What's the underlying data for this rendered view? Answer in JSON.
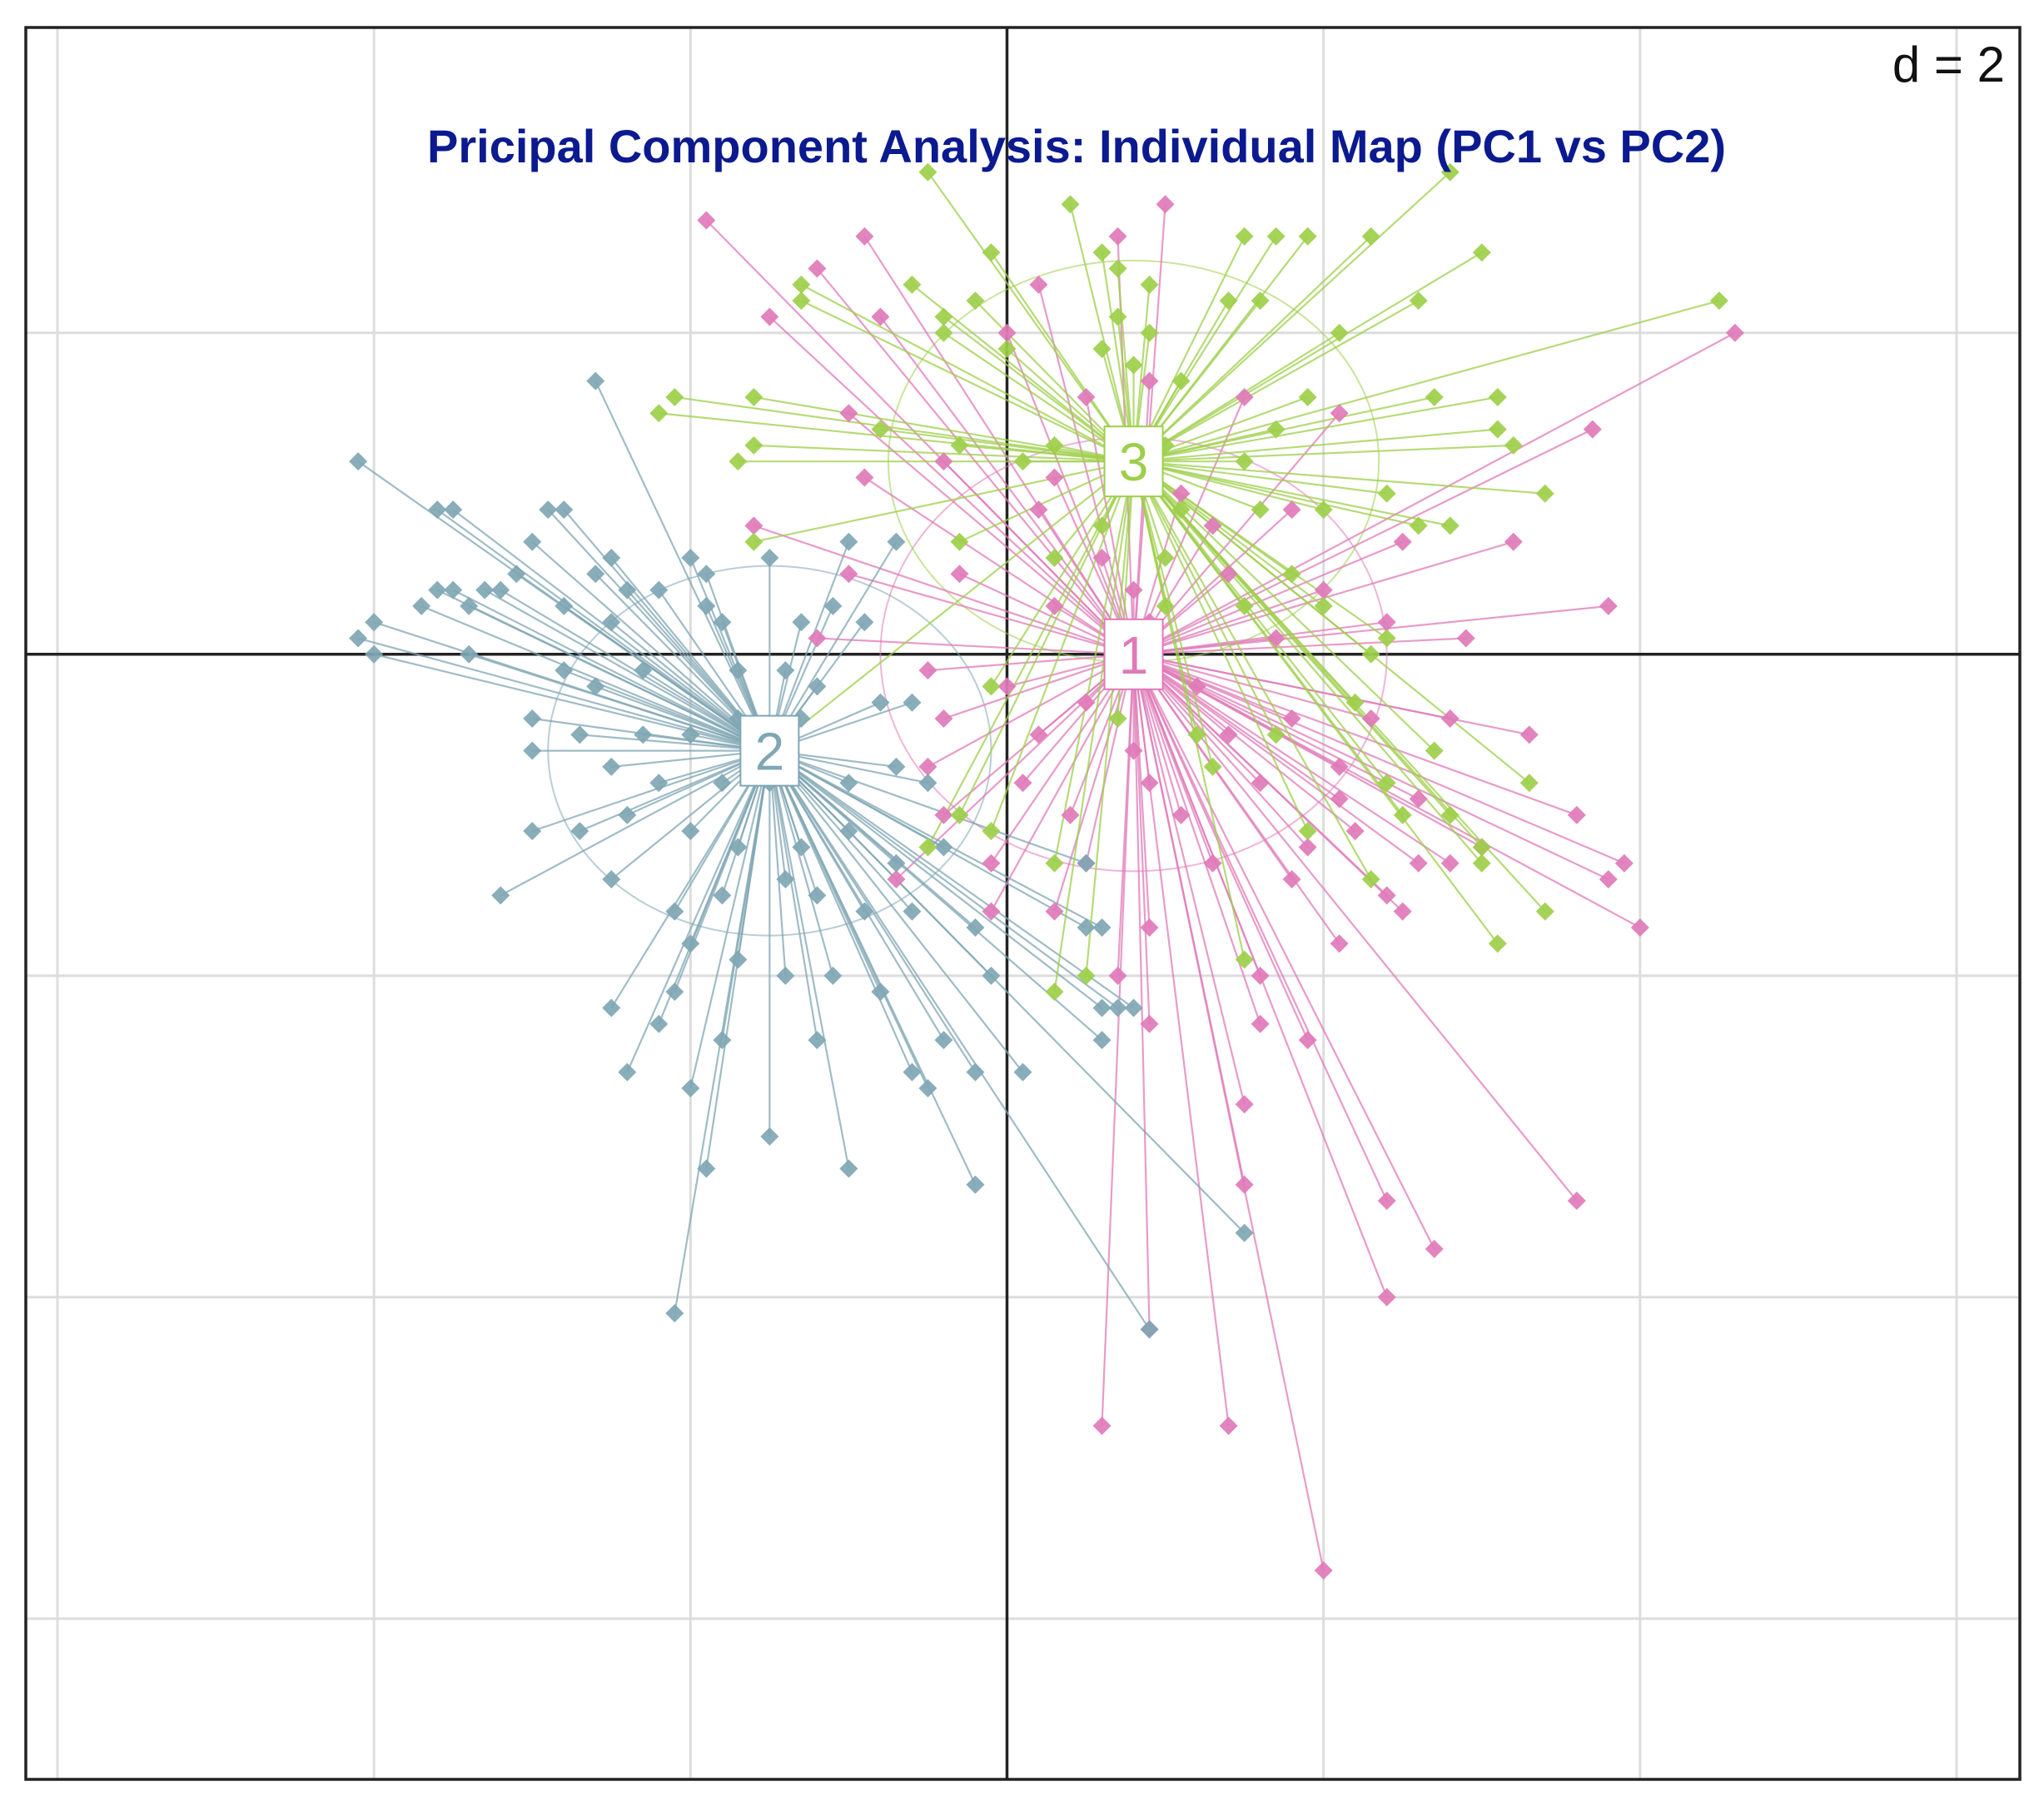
{
  "chart_data": {
    "type": "scatter",
    "title": "Pricipal Component Analysis: Individual Map (PC1 vs PC2)",
    "xlabel": "",
    "ylabel": "",
    "scale_label": "d = 2",
    "xlim": [
      -6.2,
      6.4
    ],
    "ylim": [
      -7.0,
      3.9
    ],
    "grid_step": 2,
    "grid": true,
    "colors": {
      "title": "#0b1a8f",
      "cluster_1": "#e07ab8",
      "cluster_2": "#7fa6b3",
      "cluster_3": "#9dcf4a"
    },
    "series": [
      {
        "name": "1",
        "centroid": [
          0.8,
          0.0
        ],
        "ellipse_radius": [
          1.6,
          1.35
        ],
        "points": [
          [
            1.0,
            2.8
          ],
          [
            0.7,
            2.6
          ],
          [
            0.2,
            2.3
          ],
          [
            -0.9,
            2.6
          ],
          [
            -1.2,
            2.4
          ],
          [
            -1.9,
            2.7
          ],
          [
            -0.8,
            2.1
          ],
          [
            -1.5,
            2.1
          ],
          [
            0.0,
            2.0
          ],
          [
            0.5,
            1.6
          ],
          [
            0.9,
            1.7
          ],
          [
            1.5,
            1.6
          ],
          [
            2.1,
            1.5
          ],
          [
            3.7,
            1.4
          ],
          [
            4.6,
            2.0
          ],
          [
            -1.0,
            1.5
          ],
          [
            -0.9,
            1.1
          ],
          [
            -0.4,
            1.2
          ],
          [
            0.3,
            1.1
          ],
          [
            1.1,
            1.0
          ],
          [
            1.8,
            0.9
          ],
          [
            2.5,
            0.7
          ],
          [
            3.2,
            0.7
          ],
          [
            1.3,
            0.8
          ],
          [
            0.6,
            0.6
          ],
          [
            0.2,
            0.9
          ],
          [
            0.8,
            0.4
          ],
          [
            1.4,
            0.5
          ],
          [
            2.0,
            0.4
          ],
          [
            2.4,
            0.2
          ],
          [
            3.8,
            0.3
          ],
          [
            -1.6,
            0.8
          ],
          [
            -1.0,
            0.5
          ],
          [
            -0.3,
            0.5
          ],
          [
            0.3,
            0.3
          ],
          [
            0.9,
            0.2
          ],
          [
            1.7,
            0.1
          ],
          [
            2.9,
            0.1
          ],
          [
            -1.2,
            0.1
          ],
          [
            -0.5,
            -0.1
          ],
          [
            0.0,
            -0.2
          ],
          [
            0.5,
            -0.3
          ],
          [
            1.2,
            -0.2
          ],
          [
            1.8,
            -0.4
          ],
          [
            2.3,
            -0.4
          ],
          [
            2.8,
            -0.4
          ],
          [
            -0.4,
            -0.4
          ],
          [
            0.2,
            -0.5
          ],
          [
            0.8,
            -0.6
          ],
          [
            1.4,
            -0.5
          ],
          [
            2.1,
            -0.7
          ],
          [
            3.3,
            -0.5
          ],
          [
            -0.5,
            -0.7
          ],
          [
            0.1,
            -0.8
          ],
          [
            0.9,
            -0.8
          ],
          [
            1.6,
            -0.8
          ],
          [
            2.1,
            -0.9
          ],
          [
            2.6,
            -0.9
          ],
          [
            3.6,
            -1.0
          ],
          [
            -0.4,
            -1.0
          ],
          [
            0.4,
            -1.0
          ],
          [
            1.1,
            -1.0
          ],
          [
            1.9,
            -1.2
          ],
          [
            2.2,
            -1.1
          ],
          [
            2.6,
            -1.3
          ],
          [
            3.0,
            -1.2
          ],
          [
            3.9,
            -1.3
          ],
          [
            3.8,
            -1.4
          ],
          [
            -0.1,
            -1.3
          ],
          [
            0.5,
            -1.3
          ],
          [
            1.3,
            -1.3
          ],
          [
            1.8,
            -1.4
          ],
          [
            2.4,
            -1.5
          ],
          [
            2.5,
            -1.6
          ],
          [
            2.8,
            -1.3
          ],
          [
            0.3,
            -1.6
          ],
          [
            0.9,
            -1.7
          ],
          [
            2.1,
            -1.8
          ],
          [
            1.6,
            -2.0
          ],
          [
            0.9,
            -2.3
          ],
          [
            -0.7,
            -1.4
          ],
          [
            -0.1,
            -1.6
          ],
          [
            0.7,
            -2.0
          ],
          [
            4.0,
            -1.7
          ],
          [
            1.6,
            -2.3
          ],
          [
            1.9,
            -2.4
          ],
          [
            1.5,
            -2.8
          ],
          [
            1.5,
            -3.3
          ],
          [
            3.6,
            -3.4
          ],
          [
            2.4,
            -3.4
          ],
          [
            2.7,
            -3.7
          ],
          [
            2.4,
            -4.0
          ],
          [
            0.9,
            -4.2
          ],
          [
            0.6,
            -4.8
          ],
          [
            1.4,
            -4.8
          ],
          [
            2.0,
            -5.7
          ]
        ]
      },
      {
        "name": "2",
        "centroid": [
          -1.5,
          -0.6
        ],
        "ellipse_radius": [
          1.4,
          1.15
        ],
        "points": [
          [
            -2.6,
            1.7
          ],
          [
            -4.1,
            1.2
          ],
          [
            -3.6,
            0.9
          ],
          [
            -3.5,
            0.9
          ],
          [
            -2.9,
            0.9
          ],
          [
            -2.8,
            0.9
          ],
          [
            -3.0,
            0.7
          ],
          [
            -2.5,
            0.6
          ],
          [
            -2.0,
            0.6
          ],
          [
            -3.1,
            0.5
          ],
          [
            -3.2,
            0.4
          ],
          [
            -3.3,
            0.4
          ],
          [
            -2.6,
            0.5
          ],
          [
            -2.4,
            0.4
          ],
          [
            -2.2,
            0.4
          ],
          [
            -1.9,
            0.5
          ],
          [
            -1.5,
            0.6
          ],
          [
            -1.0,
            0.7
          ],
          [
            -0.7,
            0.7
          ],
          [
            -4.0,
            0.2
          ],
          [
            -3.4,
            0.3
          ],
          [
            -3.5,
            0.4
          ],
          [
            -3.6,
            0.4
          ],
          [
            -2.8,
            0.3
          ],
          [
            -2.5,
            0.2
          ],
          [
            -1.9,
            0.3
          ],
          [
            -1.8,
            0.2
          ],
          [
            -1.3,
            0.2
          ],
          [
            -1.1,
            0.3
          ],
          [
            -0.9,
            0.2
          ],
          [
            -4.1,
            0.1
          ],
          [
            -4.0,
            0.0
          ],
          [
            -3.7,
            0.3
          ],
          [
            -3.4,
            0.0
          ],
          [
            -2.8,
            -0.1
          ],
          [
            -2.6,
            -0.2
          ],
          [
            -2.3,
            -0.1
          ],
          [
            -1.7,
            -0.1
          ],
          [
            -1.4,
            -0.1
          ],
          [
            -1.2,
            -0.2
          ],
          [
            -3.0,
            -0.4
          ],
          [
            -2.7,
            -0.5
          ],
          [
            -2.3,
            -0.5
          ],
          [
            -2.0,
            -0.5
          ],
          [
            -1.7,
            -0.4
          ],
          [
            -1.3,
            -0.4
          ],
          [
            -0.8,
            -0.3
          ],
          [
            -0.6,
            -0.3
          ],
          [
            -3.0,
            -0.6
          ],
          [
            -2.5,
            -0.7
          ],
          [
            -2.2,
            -0.8
          ],
          [
            -1.8,
            -0.8
          ],
          [
            -1.5,
            -0.8
          ],
          [
            -1.0,
            -0.8
          ],
          [
            -0.7,
            -0.7
          ],
          [
            -0.5,
            -0.8
          ],
          [
            -3.0,
            -1.1
          ],
          [
            -2.7,
            -1.1
          ],
          [
            -2.4,
            -1.0
          ],
          [
            -2.0,
            -1.1
          ],
          [
            -1.7,
            -1.2
          ],
          [
            -1.3,
            -1.2
          ],
          [
            -1.0,
            -1.1
          ],
          [
            -0.7,
            -1.3
          ],
          [
            -0.4,
            -1.2
          ],
          [
            0.5,
            -1.3
          ],
          [
            -3.2,
            -1.5
          ],
          [
            -2.5,
            -1.4
          ],
          [
            -2.1,
            -1.6
          ],
          [
            -1.8,
            -1.5
          ],
          [
            -1.4,
            -1.4
          ],
          [
            -1.2,
            -1.5
          ],
          [
            -0.9,
            -1.6
          ],
          [
            -0.6,
            -1.6
          ],
          [
            -0.2,
            -1.7
          ],
          [
            0.5,
            -1.7
          ],
          [
            0.6,
            -1.7
          ],
          [
            -2.0,
            -1.8
          ],
          [
            -1.7,
            -1.9
          ],
          [
            -1.4,
            -2.0
          ],
          [
            -1.1,
            -2.0
          ],
          [
            -0.8,
            -2.1
          ],
          [
            -0.1,
            -2.0
          ],
          [
            0.6,
            -2.2
          ],
          [
            0.7,
            -2.2
          ],
          [
            0.8,
            -2.2
          ],
          [
            -2.5,
            -2.2
          ],
          [
            -2.1,
            -2.1
          ],
          [
            -1.8,
            -2.4
          ],
          [
            -1.2,
            -2.4
          ],
          [
            -0.4,
            -2.4
          ],
          [
            0.1,
            -2.6
          ],
          [
            -2.0,
            -2.7
          ],
          [
            -2.2,
            -2.3
          ],
          [
            -0.6,
            -2.6
          ],
          [
            -0.2,
            -2.6
          ],
          [
            -2.4,
            -2.6
          ],
          [
            -1.5,
            -3.0
          ],
          [
            -1.9,
            -3.2
          ],
          [
            -1.0,
            -3.2
          ],
          [
            -0.2,
            -3.3
          ],
          [
            1.5,
            -3.6
          ],
          [
            -2.1,
            -4.1
          ],
          [
            0.9,
            -4.2
          ],
          [
            0.6,
            -2.4
          ],
          [
            -0.5,
            -2.7
          ]
        ]
      },
      {
        "name": "3",
        "centroid": [
          0.8,
          1.2
        ],
        "ellipse_radius": [
          1.55,
          1.25
        ],
        "points": [
          [
            -0.5,
            3.0
          ],
          [
            2.8,
            3.0
          ],
          [
            0.4,
            2.8
          ],
          [
            1.5,
            2.6
          ],
          [
            1.7,
            2.6
          ],
          [
            1.9,
            2.6
          ],
          [
            2.3,
            2.6
          ],
          [
            3.0,
            2.5
          ],
          [
            -0.1,
            2.5
          ],
          [
            0.6,
            2.5
          ],
          [
            0.7,
            2.4
          ],
          [
            -1.3,
            2.3
          ],
          [
            -0.6,
            2.3
          ],
          [
            -0.2,
            2.2
          ],
          [
            0.9,
            2.3
          ],
          [
            1.4,
            2.2
          ],
          [
            1.6,
            2.2
          ],
          [
            2.6,
            2.2
          ],
          [
            -1.3,
            2.2
          ],
          [
            -0.4,
            2.1
          ],
          [
            0.7,
            2.1
          ],
          [
            0.9,
            2.0
          ],
          [
            2.1,
            2.0
          ],
          [
            4.5,
            2.2
          ],
          [
            -0.4,
            2.0
          ],
          [
            0.0,
            1.9
          ],
          [
            0.6,
            1.9
          ],
          [
            0.8,
            1.8
          ],
          [
            1.1,
            1.7
          ],
          [
            1.9,
            1.6
          ],
          [
            2.7,
            1.6
          ],
          [
            3.1,
            1.6
          ],
          [
            -2.1,
            1.6
          ],
          [
            -1.6,
            1.6
          ],
          [
            -2.2,
            1.5
          ],
          [
            -1.6,
            1.3
          ],
          [
            -0.8,
            1.4
          ],
          [
            -0.3,
            1.3
          ],
          [
            0.3,
            1.3
          ],
          [
            1.0,
            1.3
          ],
          [
            1.7,
            1.4
          ],
          [
            3.1,
            1.4
          ],
          [
            3.2,
            1.3
          ],
          [
            -1.7,
            1.2
          ],
          [
            0.1,
            1.2
          ],
          [
            0.8,
            1.1
          ],
          [
            1.5,
            1.2
          ],
          [
            2.4,
            1.0
          ],
          [
            3.4,
            1.0
          ],
          [
            1.1,
            0.9
          ],
          [
            1.6,
            0.9
          ],
          [
            2.0,
            0.9
          ],
          [
            2.6,
            0.8
          ],
          [
            2.8,
            0.8
          ],
          [
            0.6,
            0.8
          ],
          [
            -1.6,
            0.7
          ],
          [
            -0.3,
            0.7
          ],
          [
            0.3,
            0.6
          ],
          [
            1.0,
            0.6
          ],
          [
            1.8,
            0.5
          ],
          [
            1.5,
            0.3
          ],
          [
            1.0,
            0.3
          ],
          [
            2.0,
            0.3
          ],
          [
            2.4,
            0.1
          ],
          [
            2.3,
            0.0
          ],
          [
            -0.1,
            -0.2
          ],
          [
            0.7,
            -0.4
          ],
          [
            1.2,
            -0.5
          ],
          [
            2.2,
            -0.3
          ],
          [
            1.7,
            -0.5
          ],
          [
            1.3,
            -0.7
          ],
          [
            2.7,
            -0.6
          ],
          [
            -1.5,
            -0.6
          ],
          [
            -0.5,
            -1.2
          ],
          [
            -0.1,
            -1.1
          ],
          [
            0.3,
            -1.3
          ],
          [
            2.4,
            -0.8
          ],
          [
            3.3,
            -0.8
          ],
          [
            1.9,
            -1.1
          ],
          [
            2.5,
            -1.0
          ],
          [
            2.8,
            -1.0
          ],
          [
            3.0,
            -1.2
          ],
          [
            3.0,
            -1.3
          ],
          [
            3.4,
            -1.6
          ],
          [
            0.3,
            -2.1
          ],
          [
            0.5,
            -2.0
          ],
          [
            1.5,
            -1.9
          ],
          [
            3.1,
            -1.8
          ],
          [
            2.3,
            -1.4
          ],
          [
            -0.3,
            -1.0
          ]
        ]
      }
    ]
  }
}
